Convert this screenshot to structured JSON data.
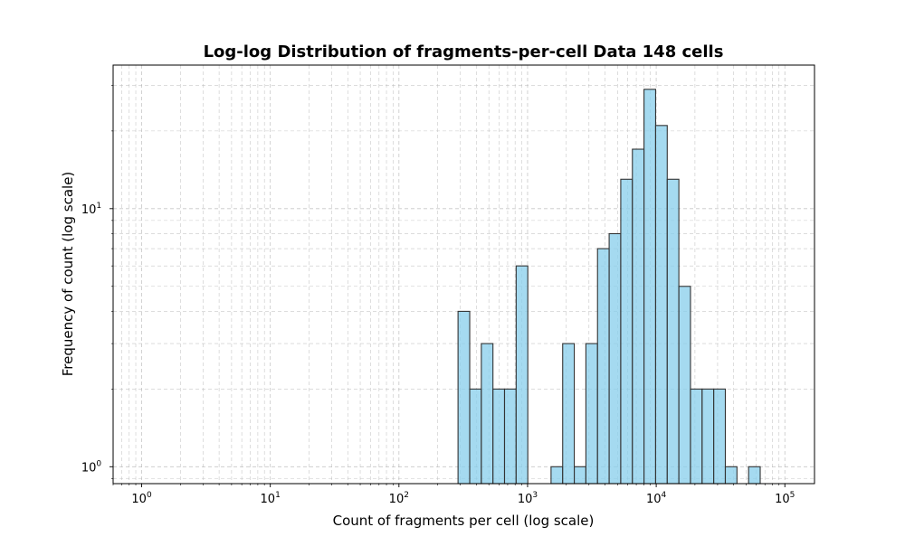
{
  "chart_data": {
    "type": "bar",
    "title": "Log-log Distribution of fragments-per-cell Data 148 cells",
    "xlabel": "Count of fragments per cell (log scale)",
    "ylabel": "Frequency of count (log scale)",
    "x_scale": "log",
    "y_scale": "log",
    "xlim": [
      0.6,
      170000
    ],
    "ylim": [
      0.86,
      36
    ],
    "grid": true,
    "grid_style": "dashed, major and minor",
    "x_ticks": [
      {
        "value": 1,
        "base": "10",
        "exp": "0"
      },
      {
        "value": 10,
        "base": "10",
        "exp": "1"
      },
      {
        "value": 100,
        "base": "10",
        "exp": "2"
      },
      {
        "value": 1000,
        "base": "10",
        "exp": "3"
      },
      {
        "value": 10000,
        "base": "10",
        "exp": "4"
      },
      {
        "value": 100000,
        "base": "10",
        "exp": "5"
      }
    ],
    "y_ticks": [
      {
        "value": 1,
        "base": "10",
        "exp": "0"
      },
      {
        "value": 10,
        "base": "10",
        "exp": "1"
      }
    ],
    "bar_color": "#87ceeb",
    "bar_edge_color": "#333333",
    "bins": [
      {
        "x0": 288,
        "x1": 355,
        "count": 4
      },
      {
        "x0": 355,
        "x1": 437,
        "count": 2
      },
      {
        "x0": 437,
        "x1": 538,
        "count": 3
      },
      {
        "x0": 538,
        "x1": 662,
        "count": 2
      },
      {
        "x0": 662,
        "x1": 815,
        "count": 2
      },
      {
        "x0": 815,
        "x1": 1004,
        "count": 6
      },
      {
        "x0": 1004,
        "x1": 1236,
        "count": 0
      },
      {
        "x0": 1236,
        "x1": 1522,
        "count": 0
      },
      {
        "x0": 1522,
        "x1": 1874,
        "count": 1
      },
      {
        "x0": 1874,
        "x1": 2307,
        "count": 3
      },
      {
        "x0": 2307,
        "x1": 2840,
        "count": 1
      },
      {
        "x0": 2840,
        "x1": 3497,
        "count": 3
      },
      {
        "x0": 3497,
        "x1": 4306,
        "count": 7
      },
      {
        "x0": 4306,
        "x1": 5301,
        "count": 8
      },
      {
        "x0": 5301,
        "x1": 6527,
        "count": 13
      },
      {
        "x0": 6527,
        "x1": 8036,
        "count": 17
      },
      {
        "x0": 8036,
        "x1": 9894,
        "count": 29
      },
      {
        "x0": 9894,
        "x1": 12182,
        "count": 21
      },
      {
        "x0": 12182,
        "x1": 14999,
        "count": 13
      },
      {
        "x0": 14999,
        "x1": 18467,
        "count": 5
      },
      {
        "x0": 18467,
        "x1": 22736,
        "count": 2
      },
      {
        "x0": 22736,
        "x1": 27993,
        "count": 2
      },
      {
        "x0": 27993,
        "x1": 34466,
        "count": 2
      },
      {
        "x0": 34466,
        "x1": 42435,
        "count": 1
      },
      {
        "x0": 42435,
        "x1": 52247,
        "count": 0
      },
      {
        "x0": 52247,
        "x1": 64327,
        "count": 1
      }
    ]
  }
}
